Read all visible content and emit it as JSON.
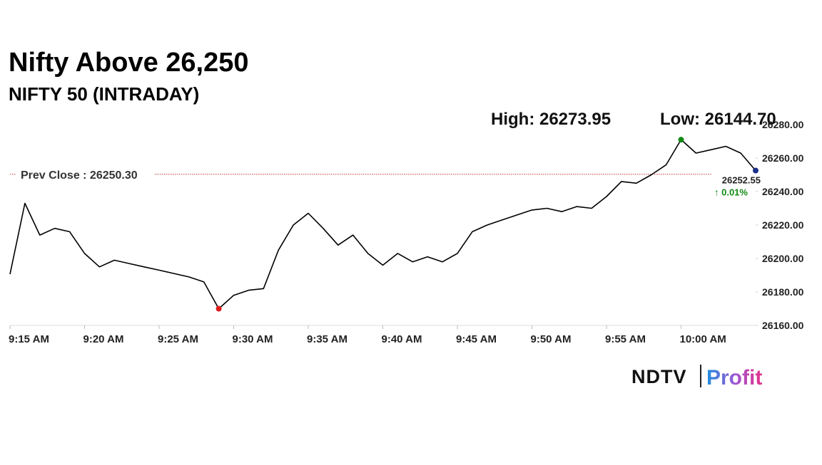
{
  "chart_data": {
    "type": "line",
    "title": "Nifty Above 26,250",
    "subtitle": "NIFTY 50 (INTRADAY)",
    "high_label": "High: 26273.95",
    "low_label": "Low: 26144.70",
    "prev_close": {
      "value": 26250.3,
      "label": "Prev Close : 26250.30"
    },
    "change_label": "↑ 0.01%",
    "categories": [
      "9:15 AM",
      null,
      null,
      null,
      null,
      "9:20 AM",
      null,
      null,
      null,
      null,
      "9:25 AM",
      null,
      null,
      null,
      null,
      "9:30 AM",
      null,
      null,
      null,
      null,
      "9:35 AM",
      null,
      null,
      null,
      null,
      "9:40 AM",
      null,
      null,
      null,
      null,
      "9:45 AM",
      null,
      null,
      null,
      null,
      "9:50 AM",
      null,
      null,
      null,
      null,
      "9:55 AM",
      null,
      null,
      null,
      null,
      "10:00 AM",
      null,
      null,
      null,
      null,
      null
    ],
    "values": [
      26190.6,
      26233,
      26214,
      26218,
      26216,
      26203,
      26195,
      26199,
      26197,
      26195,
      26193,
      26191,
      26189,
      26186,
      26170,
      26178,
      26181,
      26182,
      26205,
      26220,
      26227,
      26218,
      26208,
      26214,
      26203,
      26196,
      26203,
      26198,
      26201,
      26198,
      26203,
      26216,
      26220,
      26223,
      26226,
      26229,
      26230,
      26228,
      26231,
      26230,
      26237,
      26246,
      26245,
      26250,
      26256,
      26271,
      26263,
      26265,
      26267,
      26263,
      26252.55
    ],
    "value_labels": [
      null,
      null,
      null,
      null,
      null,
      null,
      null,
      null,
      null,
      null,
      null,
      null,
      null,
      null,
      null,
      null,
      null,
      null,
      null,
      null,
      null,
      null,
      null,
      null,
      null,
      null,
      null,
      null,
      null,
      null,
      null,
      null,
      null,
      null,
      null,
      null,
      null,
      null,
      null,
      null,
      null,
      null,
      null,
      null,
      null,
      null,
      null,
      null,
      null,
      null,
      "26252.55"
    ],
    "color": "#000000",
    "high_color": "#138a13",
    "low_color": "#e01b1b",
    "last_color": "#1a2f8c",
    "prev_close_color": "#c0392b",
    "ylim": [
      26160,
      26280
    ],
    "yticks": [
      {
        "value": 26160,
        "label": "26160.00"
      },
      {
        "value": 26180,
        "label": "26180.00"
      },
      {
        "value": 26200,
        "label": "26200.00"
      },
      {
        "value": 26220,
        "label": "26220.00"
      },
      {
        "value": 26240,
        "label": "26240.00"
      },
      {
        "value": 26260,
        "label": "26260.00"
      },
      {
        "value": 26280,
        "label": "26280.00"
      }
    ]
  },
  "brand": {
    "name": "NDTV",
    "product": "Profit"
  }
}
